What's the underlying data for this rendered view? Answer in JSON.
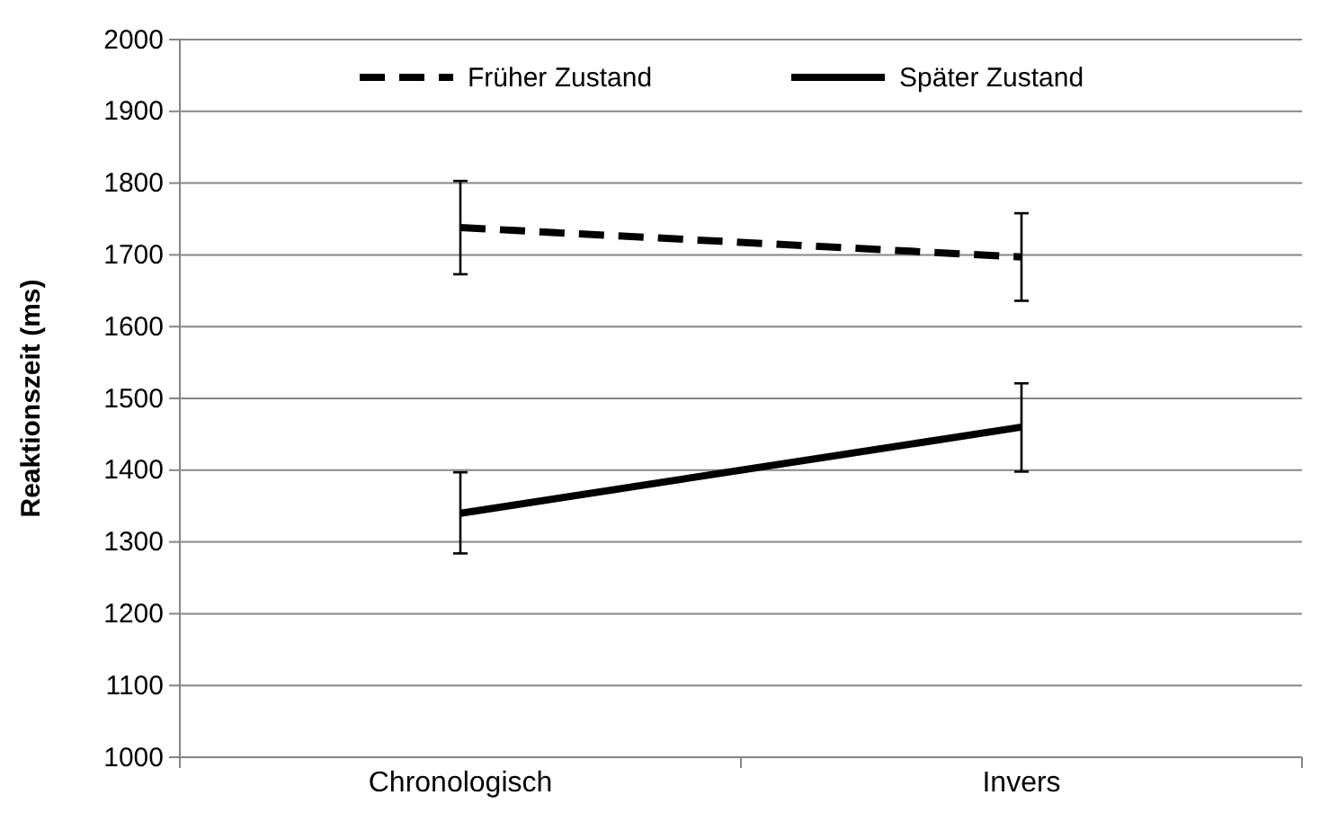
{
  "chart_data": {
    "type": "line",
    "ylabel": "Reaktionszeit (ms)",
    "categories": [
      "Chronologisch",
      "Invers"
    ],
    "series": [
      {
        "name": "Früher Zustand",
        "color": "#000000",
        "line_style": "dashed",
        "values": [
          1738,
          1697
        ],
        "errors": [
          [
            1673,
            1803
          ],
          [
            1636,
            1758
          ]
        ]
      },
      {
        "name": "Später Zustand",
        "color": "#000000",
        "line_style": "solid",
        "values": [
          1340,
          1460
        ],
        "errors": [
          [
            1284,
            1397
          ],
          [
            1398,
            1521
          ]
        ]
      }
    ],
    "ylim": [
      1000,
      2000
    ],
    "yticks": [
      1000,
      1100,
      1200,
      1300,
      1400,
      1500,
      1600,
      1700,
      1800,
      1900,
      2000
    ],
    "grid": "y",
    "legend": "top",
    "marker": "none"
  }
}
